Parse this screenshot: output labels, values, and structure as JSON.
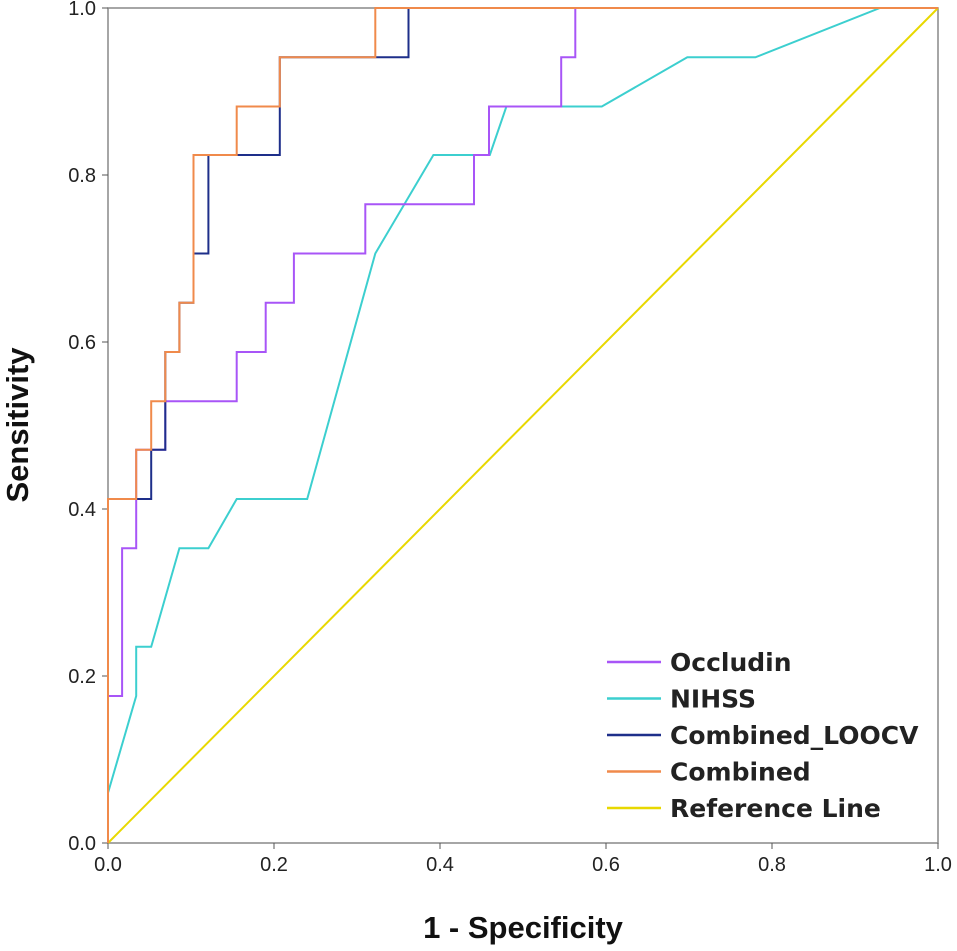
{
  "chart_data": {
    "type": "line",
    "title": "",
    "xlabel": "1 - Specificity",
    "ylabel": "Sensitivity",
    "xlim": [
      0,
      1
    ],
    "ylim": [
      0,
      1
    ],
    "xticks": [
      "0.0",
      "0.2",
      "0.4",
      "0.6",
      "0.8",
      "1.0"
    ],
    "yticks": [
      "0.0",
      "0.2",
      "0.4",
      "0.6",
      "0.8",
      "1.0"
    ],
    "grid": false,
    "legend_position": "bottom-right",
    "series": [
      {
        "name": "Occludin",
        "color": "#a855f7",
        "x": [
          0,
          0,
          0.017,
          0.017,
          0.034,
          0.034,
          0.069,
          0.069,
          0.155,
          0.155,
          0.19,
          0.19,
          0.224,
          0.224,
          0.31,
          0.31,
          0.441,
          0.441,
          0.459,
          0.459,
          0.546,
          0.546,
          0.563,
          0.563,
          1.0
        ],
        "y": [
          0,
          0.176,
          0.176,
          0.353,
          0.353,
          0.471,
          0.471,
          0.529,
          0.529,
          0.588,
          0.588,
          0.647,
          0.647,
          0.706,
          0.706,
          0.765,
          0.765,
          0.824,
          0.824,
          0.882,
          0.882,
          0.941,
          0.941,
          1.0,
          1.0
        ]
      },
      {
        "name": "NIHSS",
        "color": "#3ccfcf",
        "x": [
          0,
          0.034,
          0.034,
          0.052,
          0.086,
          0.121,
          0.155,
          0.24,
          0.322,
          0.392,
          0.46,
          0.48,
          0.595,
          0.698,
          0.78,
          0.93,
          1.0
        ],
        "y": [
          0.06,
          0.176,
          0.235,
          0.235,
          0.353,
          0.353,
          0.412,
          0.412,
          0.706,
          0.824,
          0.824,
          0.882,
          0.882,
          0.941,
          0.941,
          1.0,
          1.0
        ]
      },
      {
        "name": "Combined_LOOCV",
        "color": "#1e2f8a",
        "x": [
          0,
          0,
          0.052,
          0.052,
          0.069,
          0.069,
          0.086,
          0.086,
          0.103,
          0.103,
          0.121,
          0.121,
          0.207,
          0.207,
          0.362,
          0.362,
          1.0
        ],
        "y": [
          0,
          0.412,
          0.412,
          0.471,
          0.471,
          0.588,
          0.588,
          0.647,
          0.647,
          0.706,
          0.706,
          0.824,
          0.824,
          0.941,
          0.941,
          1.0,
          1.0
        ]
      },
      {
        "name": "Combined",
        "color": "#f08a4b",
        "x": [
          0,
          0,
          0.034,
          0.034,
          0.052,
          0.052,
          0.069,
          0.069,
          0.086,
          0.086,
          0.103,
          0.103,
          0.155,
          0.155,
          0.207,
          0.207,
          0.322,
          0.322,
          1.0
        ],
        "y": [
          0,
          0.412,
          0.412,
          0.471,
          0.471,
          0.529,
          0.529,
          0.588,
          0.588,
          0.647,
          0.647,
          0.824,
          0.824,
          0.882,
          0.882,
          0.941,
          0.941,
          1.0,
          1.0
        ]
      },
      {
        "name": "Reference Line",
        "color": "#e8d800",
        "x": [
          0,
          1.0
        ],
        "y": [
          0,
          1.0
        ]
      }
    ]
  }
}
